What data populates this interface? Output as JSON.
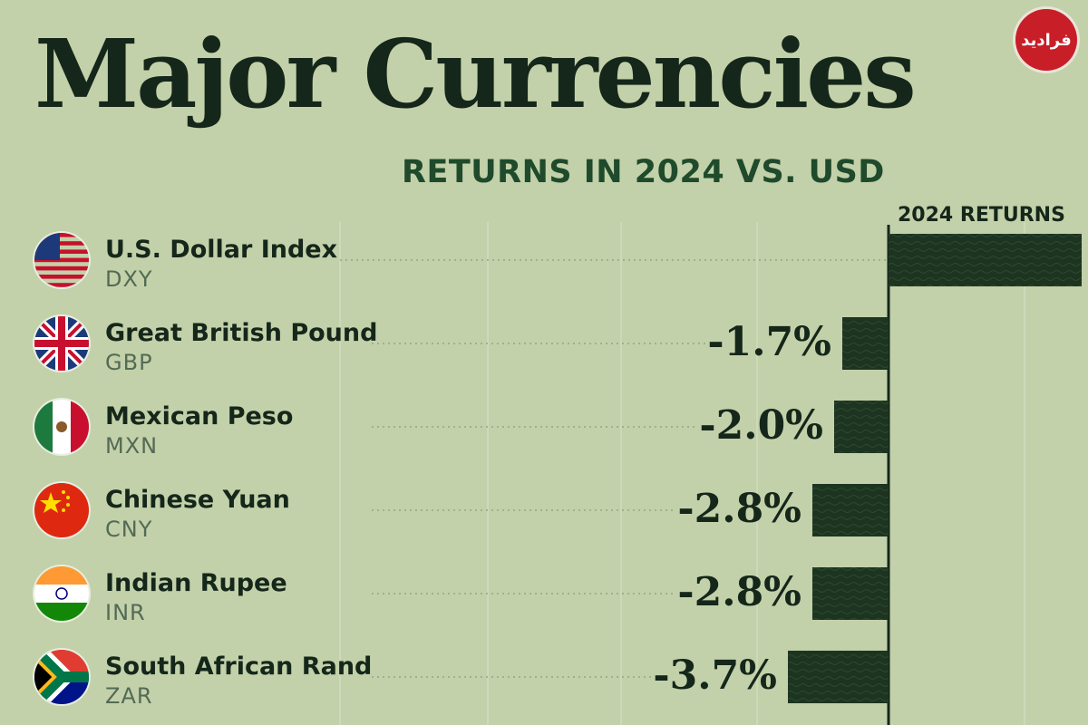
{
  "title": "Major Currencies",
  "subtitle": "RETURNS IN 2024 VS. USD",
  "logo_text": "فرادید",
  "colors": {
    "background": "#c2d1a9",
    "bar": "#1d3420",
    "text": "#15261a",
    "subtitle": "#1f4a2c",
    "logo": "#c81e28"
  },
  "chart_data": {
    "type": "bar",
    "orientation": "horizontal",
    "column_header": "2024 RETURNS",
    "rows": [
      {
        "name": "U.S. Dollar Index",
        "code": "DXY",
        "flag": "us-flag-icon",
        "value": 7.1,
        "label": ""
      },
      {
        "name": "Great British Pound",
        "code": "GBP",
        "flag": "uk-flag-icon",
        "value": -1.7,
        "label": "-1.7%"
      },
      {
        "name": "Mexican Peso",
        "code": "MXN",
        "flag": "mexico-flag-icon",
        "value": -2.0,
        "label": "-2.0%"
      },
      {
        "name": "Chinese Yuan",
        "code": "CNY",
        "flag": "china-flag-icon",
        "value": -2.8,
        "label": "-2.8%"
      },
      {
        "name": "Indian Rupee",
        "code": "INR",
        "flag": "india-flag-icon",
        "value": -2.8,
        "label": "-2.8%"
      },
      {
        "name": "South African Rand",
        "code": "ZAR",
        "flag": "south-africa-flag-icon",
        "value": -3.7,
        "label": "-3.7%"
      }
    ]
  }
}
